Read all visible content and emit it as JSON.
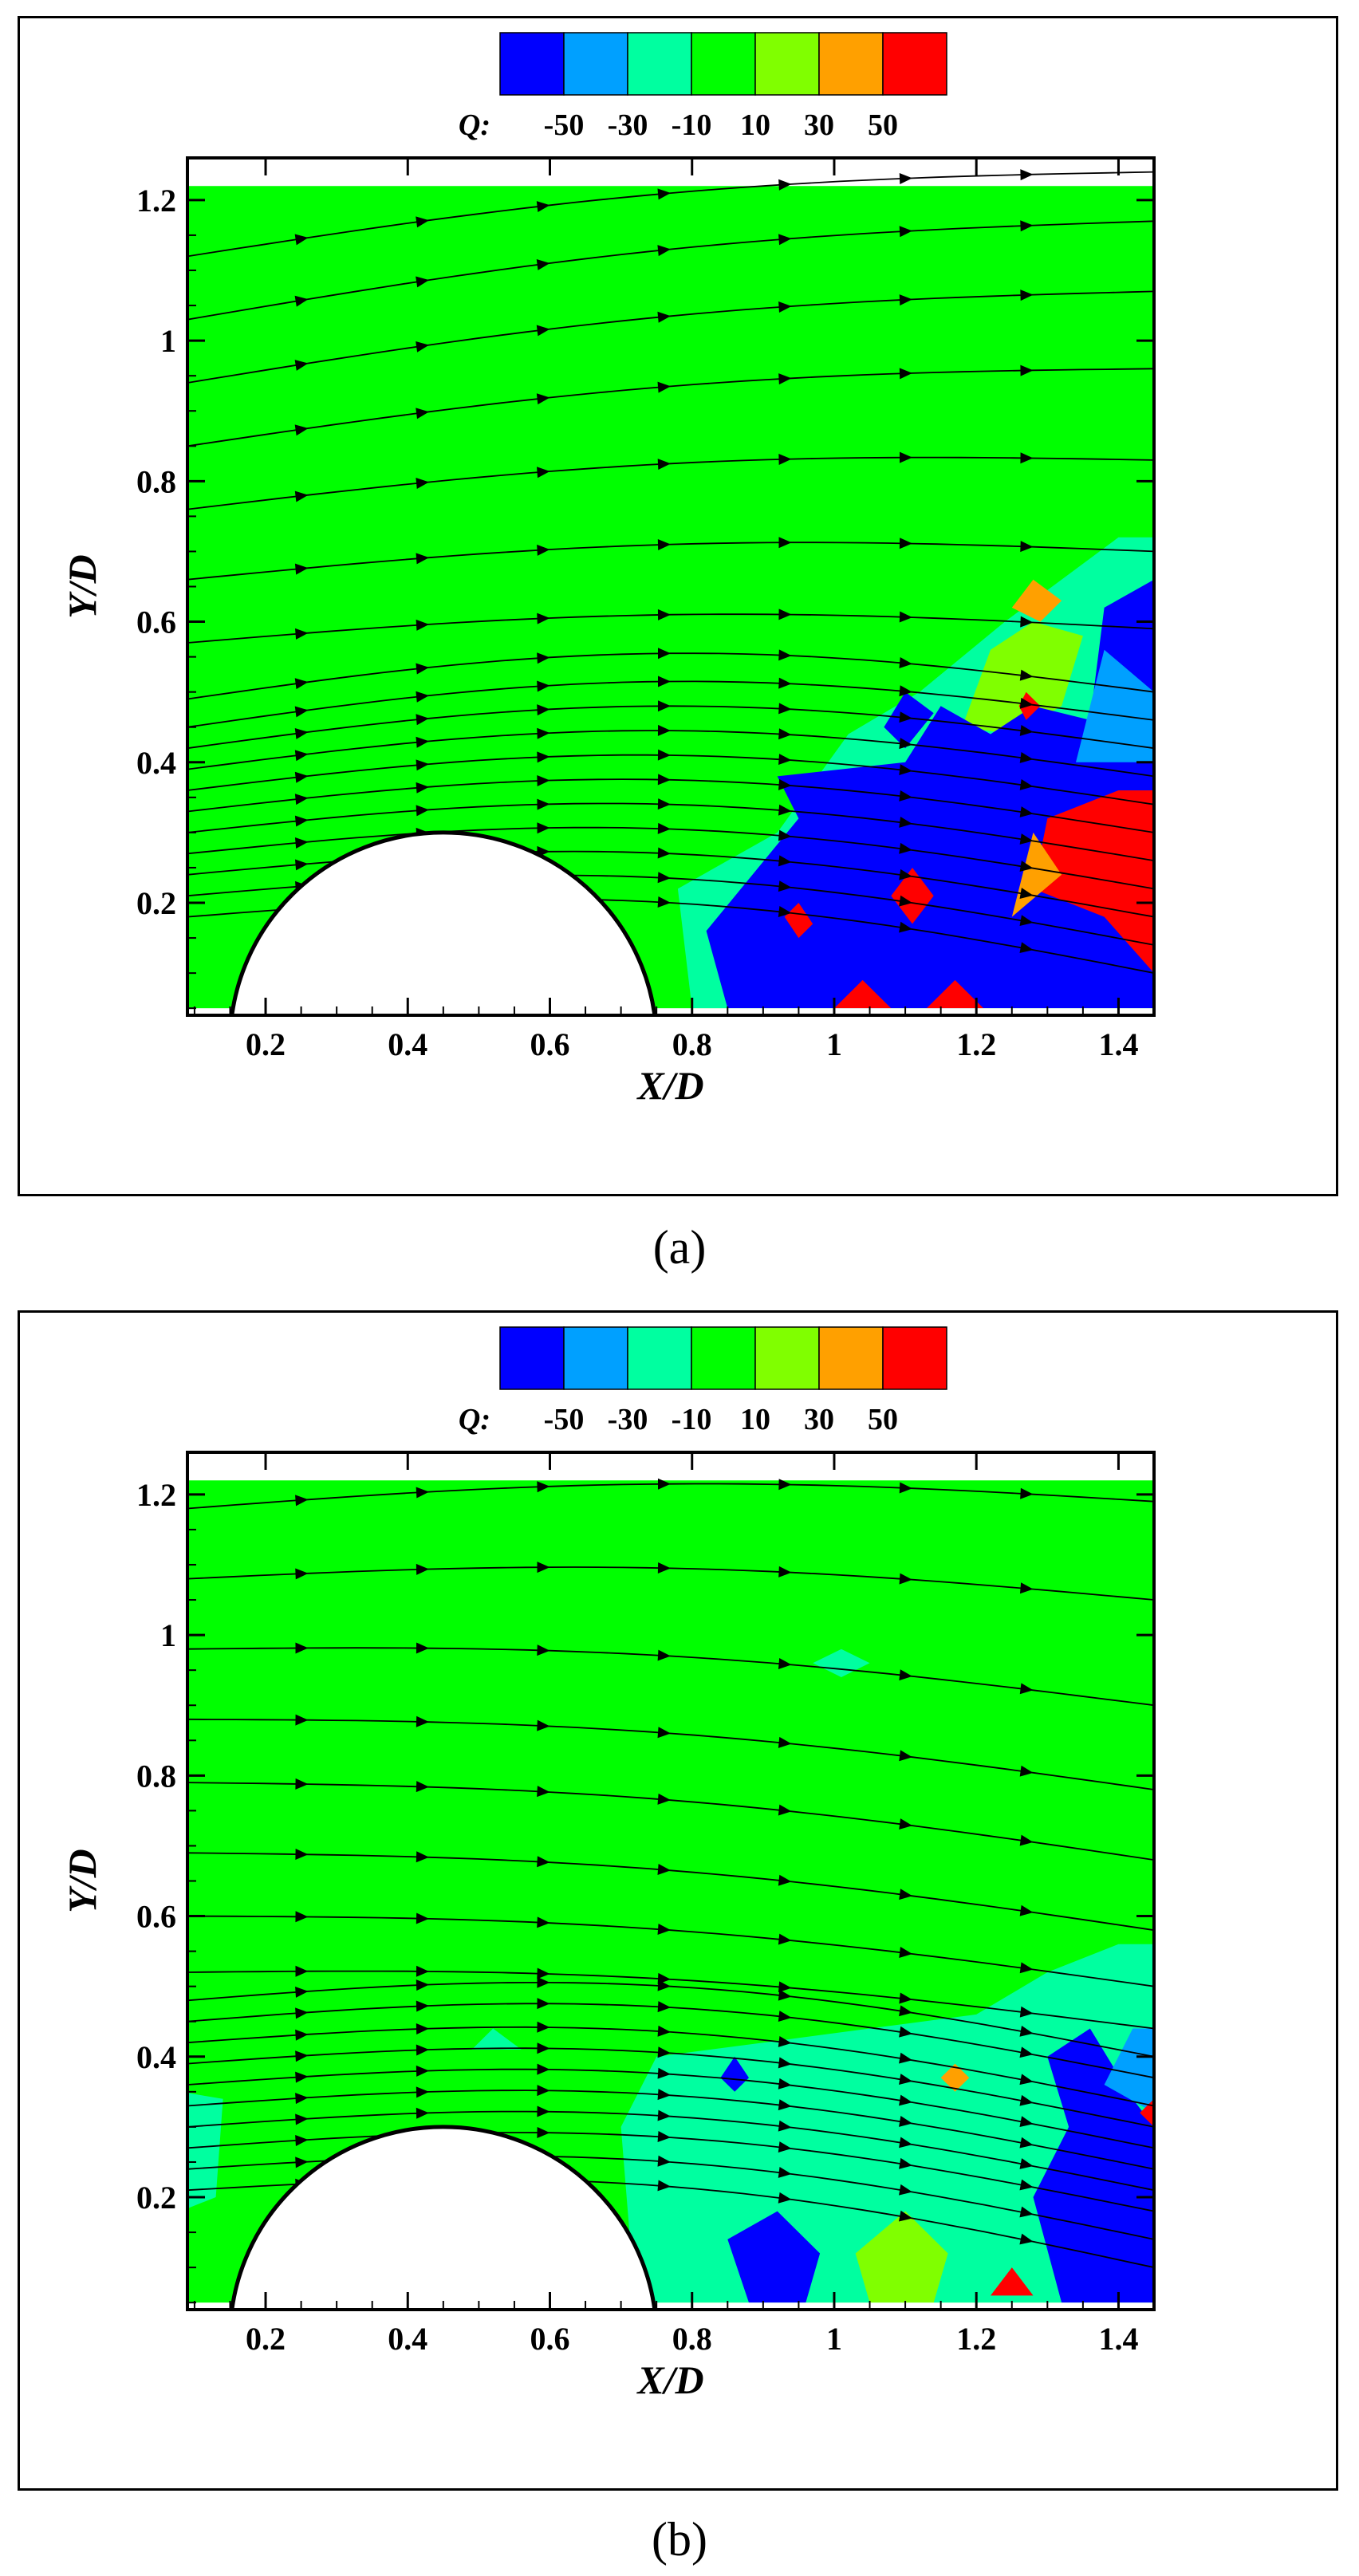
{
  "chart_data": [
    {
      "type": "contour",
      "panel": "(a)",
      "xlabel": "X/D",
      "ylabel": "Y/D",
      "xlim": [
        0.09,
        1.45
      ],
      "ylim": [
        0.04,
        1.26
      ],
      "xticks": [
        0.2,
        0.4,
        0.6,
        0.8,
        1,
        1.2,
        1.4
      ],
      "yticks": [
        0.2,
        0.4,
        0.6,
        0.8,
        1,
        1.2
      ],
      "legend": {
        "title": "Q:",
        "levels": [
          "-50",
          "-30",
          "-10",
          "10",
          "30",
          "50"
        ],
        "colors": [
          "#0000ff",
          "#00a0ff",
          "#00ffa0",
          "#00ff00",
          "#80ff00",
          "#ffa000",
          "#ff0000"
        ],
        "placement": "top-center"
      },
      "background_level_color": "#00ff00",
      "cylinder": {
        "center_x": 0.45,
        "radius": 0.3
      },
      "regions": [
        {
          "color": "#00ffa0",
          "points": [
            [
              0.8,
              0.05
            ],
            [
              0.78,
              0.22
            ],
            [
              0.92,
              0.3
            ],
            [
              1.02,
              0.44
            ],
            [
              1.12,
              0.5
            ],
            [
              1.24,
              0.6
            ],
            [
              1.4,
              0.72
            ],
            [
              1.45,
              0.72
            ],
            [
              1.45,
              0.05
            ]
          ]
        },
        {
          "color": "#80ff00",
          "points": [
            [
              1.18,
              0.45
            ],
            [
              1.22,
              0.56
            ],
            [
              1.28,
              0.6
            ],
            [
              1.35,
              0.58
            ],
            [
              1.32,
              0.48
            ],
            [
              1.25,
              0.44
            ]
          ]
        },
        {
          "color": "#ffa000",
          "points": [
            [
              1.25,
              0.62
            ],
            [
              1.28,
              0.66
            ],
            [
              1.32,
              0.63
            ],
            [
              1.29,
              0.6
            ]
          ]
        },
        {
          "color": "#0000ff",
          "points": [
            [
              0.85,
              0.05
            ],
            [
              0.82,
              0.16
            ],
            [
              0.95,
              0.32
            ],
            [
              0.92,
              0.38
            ],
            [
              1.1,
              0.4
            ],
            [
              1.15,
              0.48
            ],
            [
              1.22,
              0.44
            ],
            [
              1.28,
              0.48
            ],
            [
              1.36,
              0.46
            ],
            [
              1.38,
              0.62
            ],
            [
              1.45,
              0.66
            ],
            [
              1.45,
              0.05
            ]
          ]
        },
        {
          "color": "#0000ff",
          "points": [
            [
              1.07,
              0.45
            ],
            [
              1.1,
              0.5
            ],
            [
              1.14,
              0.47
            ],
            [
              1.1,
              0.42
            ]
          ]
        },
        {
          "color": "#ff0000",
          "points": [
            [
              1.28,
              0.22
            ],
            [
              1.3,
              0.32
            ],
            [
              1.4,
              0.36
            ],
            [
              1.45,
              0.36
            ],
            [
              1.45,
              0.1
            ],
            [
              1.38,
              0.18
            ]
          ]
        },
        {
          "color": "#ffa000",
          "points": [
            [
              1.25,
              0.18
            ],
            [
              1.28,
              0.3
            ],
            [
              1.32,
              0.24
            ]
          ]
        },
        {
          "color": "#ff0000",
          "points": [
            [
              1.08,
              0.21
            ],
            [
              1.11,
              0.25
            ],
            [
              1.14,
              0.21
            ],
            [
              1.11,
              0.17
            ]
          ]
        },
        {
          "color": "#ff0000",
          "points": [
            [
              0.93,
              0.18
            ],
            [
              0.95,
              0.2
            ],
            [
              0.97,
              0.17
            ],
            [
              0.95,
              0.15
            ]
          ]
        },
        {
          "color": "#ff0000",
          "points": [
            [
              1.0,
              0.05
            ],
            [
              1.04,
              0.09
            ],
            [
              1.08,
              0.05
            ]
          ]
        },
        {
          "color": "#ff0000",
          "points": [
            [
              1.13,
              0.05
            ],
            [
              1.17,
              0.09
            ],
            [
              1.21,
              0.05
            ]
          ]
        },
        {
          "color": "#ff0000",
          "points": [
            [
              1.26,
              0.48
            ],
            [
              1.27,
              0.5
            ],
            [
              1.29,
              0.48
            ],
            [
              1.27,
              0.46
            ]
          ]
        },
        {
          "color": "#00a0ff",
          "points": [
            [
              1.34,
              0.4
            ],
            [
              1.38,
              0.56
            ],
            [
              1.45,
              0.5
            ],
            [
              1.45,
              0.4
            ]
          ]
        }
      ],
      "streamlines": [
        {
          "y0": 1.12,
          "y1": 1.24
        },
        {
          "y0": 1.03,
          "y1": 1.17
        },
        {
          "y0": 0.94,
          "y1": 1.07
        },
        {
          "y0": 0.85,
          "y1": 0.96
        },
        {
          "y0": 0.76,
          "y1": 0.83
        },
        {
          "y0": 0.66,
          "y1": 0.7
        },
        {
          "y0": 0.57,
          "y1": 0.59
        },
        {
          "y0": 0.49,
          "y1": 0.5
        },
        {
          "y0": 0.45,
          "y1": 0.46
        },
        {
          "y0": 0.42,
          "y1": 0.42
        },
        {
          "y0": 0.39,
          "y1": 0.38
        },
        {
          "y0": 0.36,
          "y1": 0.34
        },
        {
          "y0": 0.33,
          "y1": 0.3
        },
        {
          "y0": 0.3,
          "y1": 0.26
        },
        {
          "y0": 0.27,
          "y1": 0.22
        },
        {
          "y0": 0.24,
          "y1": 0.18
        },
        {
          "y0": 0.21,
          "y1": 0.14
        },
        {
          "y0": 0.18,
          "y1": 0.1
        }
      ]
    },
    {
      "type": "contour",
      "panel": "(b)",
      "xlabel": "X/D",
      "ylabel": "Y/D",
      "xlim": [
        0.09,
        1.45
      ],
      "ylim": [
        0.04,
        1.26
      ],
      "xticks": [
        0.2,
        0.4,
        0.6,
        0.8,
        1,
        1.2,
        1.4
      ],
      "yticks": [
        0.2,
        0.4,
        0.6,
        0.8,
        1,
        1.2
      ],
      "legend": {
        "title": "Q:",
        "levels": [
          "-50",
          "-30",
          "-10",
          "10",
          "30",
          "50"
        ],
        "colors": [
          "#0000ff",
          "#00a0ff",
          "#00ffa0",
          "#00ff00",
          "#80ff00",
          "#ffa000",
          "#ff0000"
        ],
        "placement": "top-center"
      },
      "background_level_color": "#00ff00",
      "cylinder": {
        "center_x": 0.45,
        "radius": 0.3
      },
      "regions": [
        {
          "color": "#00ffa0",
          "points": [
            [
              0.72,
              0.05
            ],
            [
              0.7,
              0.3
            ],
            [
              0.75,
              0.4
            ],
            [
              0.9,
              0.42
            ],
            [
              1.05,
              0.44
            ],
            [
              1.2,
              0.46
            ],
            [
              1.3,
              0.52
            ],
            [
              1.4,
              0.56
            ],
            [
              1.45,
              0.56
            ],
            [
              1.45,
              0.05
            ]
          ]
        },
        {
          "color": "#00ffa0",
          "points": [
            [
              0.97,
              0.96
            ],
            [
              1.01,
              0.98
            ],
            [
              1.05,
              0.96
            ],
            [
              1.01,
              0.94
            ]
          ]
        },
        {
          "color": "#00ffa0",
          "points": [
            [
              0.08,
              0.18
            ],
            [
              0.08,
              0.35
            ],
            [
              0.14,
              0.34
            ],
            [
              0.13,
              0.2
            ]
          ]
        },
        {
          "color": "#00ffa0",
          "points": [
            [
              0.49,
              0.41
            ],
            [
              0.52,
              0.44
            ],
            [
              0.56,
              0.41
            ]
          ]
        },
        {
          "color": "#0000ff",
          "points": [
            [
              0.84,
              0.37
            ],
            [
              0.86,
              0.4
            ],
            [
              0.88,
              0.37
            ],
            [
              0.86,
              0.35
            ]
          ]
        },
        {
          "color": "#0000ff",
          "points": [
            [
              0.88,
              0.05
            ],
            [
              0.85,
              0.14
            ],
            [
              0.92,
              0.18
            ],
            [
              0.98,
              0.12
            ],
            [
              0.96,
              0.05
            ]
          ]
        },
        {
          "color": "#80ff00",
          "points": [
            [
              1.05,
              0.05
            ],
            [
              1.03,
              0.12
            ],
            [
              1.1,
              0.18
            ],
            [
              1.16,
              0.12
            ],
            [
              1.14,
              0.05
            ]
          ]
        },
        {
          "color": "#0000ff",
          "points": [
            [
              1.32,
              0.05
            ],
            [
              1.28,
              0.2
            ],
            [
              1.33,
              0.3
            ],
            [
              1.3,
              0.4
            ],
            [
              1.36,
              0.44
            ],
            [
              1.42,
              0.34
            ],
            [
              1.45,
              0.3
            ],
            [
              1.45,
              0.05
            ]
          ]
        },
        {
          "color": "#00a0ff",
          "points": [
            [
              1.38,
              0.36
            ],
            [
              1.42,
              0.44
            ],
            [
              1.45,
              0.44
            ],
            [
              1.45,
              0.32
            ]
          ]
        },
        {
          "color": "#ff0000",
          "points": [
            [
              1.22,
              0.06
            ],
            [
              1.25,
              0.1
            ],
            [
              1.28,
              0.06
            ]
          ]
        },
        {
          "color": "#ffa000",
          "points": [
            [
              1.15,
              0.37
            ],
            [
              1.17,
              0.39
            ],
            [
              1.19,
              0.37
            ],
            [
              1.17,
              0.35
            ]
          ]
        },
        {
          "color": "#ff0000",
          "points": [
            [
              1.43,
              0.32
            ],
            [
              1.45,
              0.34
            ],
            [
              1.45,
              0.3
            ]
          ]
        }
      ],
      "streamlines": [
        {
          "y0": 1.18,
          "y1": 1.19
        },
        {
          "y0": 1.08,
          "y1": 1.05
        },
        {
          "y0": 0.98,
          "y1": 0.9
        },
        {
          "y0": 0.88,
          "y1": 0.78
        },
        {
          "y0": 0.79,
          "y1": 0.68
        },
        {
          "y0": 0.69,
          "y1": 0.58
        },
        {
          "y0": 0.6,
          "y1": 0.5
        },
        {
          "y0": 0.52,
          "y1": 0.44
        },
        {
          "y0": 0.48,
          "y1": 0.4
        },
        {
          "y0": 0.45,
          "y1": 0.37
        },
        {
          "y0": 0.42,
          "y1": 0.33
        },
        {
          "y0": 0.39,
          "y1": 0.3
        },
        {
          "y0": 0.36,
          "y1": 0.27
        },
        {
          "y0": 0.33,
          "y1": 0.24
        },
        {
          "y0": 0.3,
          "y1": 0.21
        },
        {
          "y0": 0.27,
          "y1": 0.18
        },
        {
          "y0": 0.24,
          "y1": 0.14
        },
        {
          "y0": 0.21,
          "y1": 0.1
        }
      ]
    }
  ],
  "captions": [
    "(a)",
    "(b)"
  ]
}
